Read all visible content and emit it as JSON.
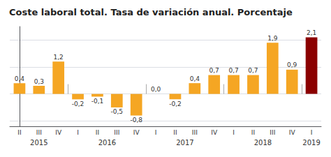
{
  "chart_data": {
    "type": "bar",
    "title": "Coste laboral total. Tasa de variación anual. Porcentaje",
    "categories": [
      "II",
      "III",
      "IV",
      "I",
      "II",
      "III",
      "IV",
      "I",
      "II",
      "III",
      "IV",
      "I",
      "II",
      "III",
      "IV",
      "I"
    ],
    "values": [
      0.4,
      0.3,
      1.2,
      -0.2,
      -0.1,
      -0.5,
      -0.8,
      0.0,
      -0.2,
      0.4,
      0.7,
      0.7,
      0.7,
      1.9,
      0.9,
      2.1
    ],
    "value_labels": [
      "0,4",
      "0,3",
      "1,2",
      "-0,2",
      "-0,1",
      "-0,5",
      "-0,8",
      "0,0",
      "-0,2",
      "0,4",
      "0,7",
      "0,7",
      "0,7",
      "1,9",
      "0,9",
      "2,1"
    ],
    "colors": [
      "#F5A623",
      "#F5A623",
      "#F5A623",
      "#F5A623",
      "#F5A623",
      "#F5A623",
      "#F5A623",
      "#F5A623",
      "#F5A623",
      "#F5A623",
      "#F5A623",
      "#F5A623",
      "#F5A623",
      "#F5A623",
      "#F5A623",
      "#8B0000"
    ],
    "ylim": [
      -1.2,
      2.5
    ],
    "yticks": [
      -1,
      0,
      1,
      2
    ],
    "grid": true,
    "data_labels": true,
    "tick_labels": "x",
    "annotations": [
      {
        "text": "2015",
        "positions": [
          0,
          1,
          2
        ]
      },
      {
        "text": "2016",
        "positions": [
          3,
          4,
          5,
          6
        ]
      },
      {
        "text": "2017",
        "positions": [
          7,
          8,
          9,
          10
        ]
      },
      {
        "text": "2018",
        "positions": [
          11,
          12,
          13,
          14
        ]
      },
      {
        "text": "2019",
        "positions": [
          15
        ]
      }
    ]
  }
}
